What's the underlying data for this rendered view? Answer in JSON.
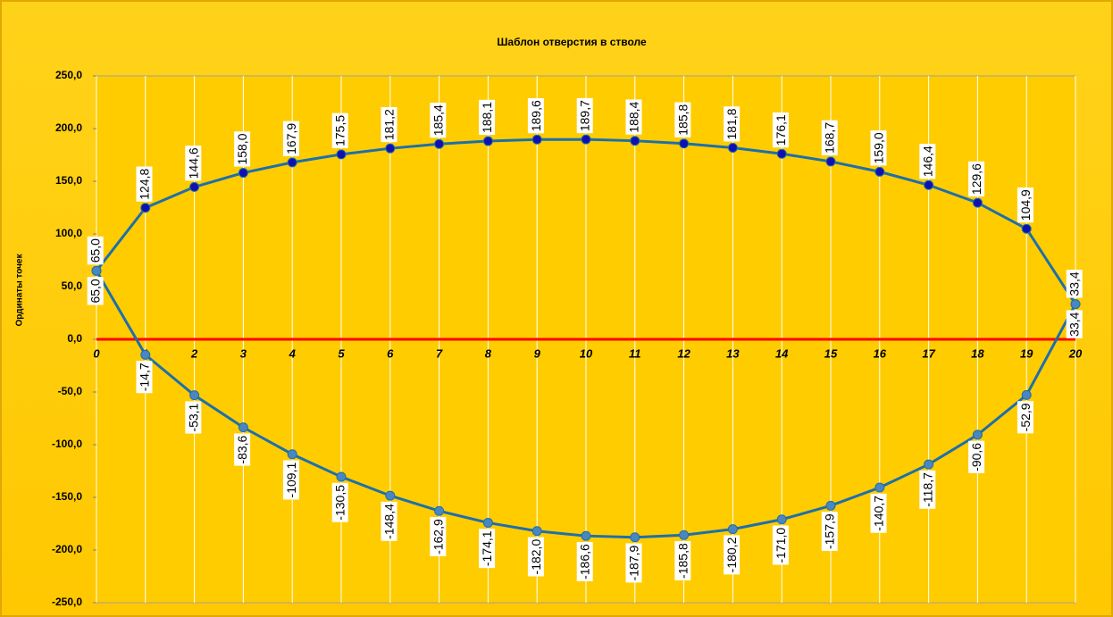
{
  "chart_data": {
    "type": "line",
    "title": "Шаблон отверстия в стволе",
    "y_label": "Ординаты точек",
    "x": [
      0,
      1,
      2,
      3,
      4,
      5,
      6,
      7,
      8,
      9,
      10,
      11,
      12,
      13,
      14,
      15,
      16,
      17,
      18,
      19,
      20
    ],
    "xlim": [
      0,
      20
    ],
    "xticks": [
      0,
      1,
      2,
      3,
      4,
      5,
      6,
      7,
      8,
      9,
      10,
      11,
      12,
      13,
      14,
      15,
      16,
      17,
      18,
      19,
      20
    ],
    "ylim": [
      -250,
      250
    ],
    "yticks": [
      {
        "value": -250,
        "label": "-250,0"
      },
      {
        "value": -200,
        "label": "-200,0"
      },
      {
        "value": -150,
        "label": "-150,0"
      },
      {
        "value": -100,
        "label": "-100,0"
      },
      {
        "value": -50,
        "label": "-50,0"
      },
      {
        "value": 0,
        "label": "0,0"
      },
      {
        "value": 50,
        "label": "50,0"
      },
      {
        "value": 100,
        "label": "100,0"
      },
      {
        "value": 150,
        "label": "150,0"
      },
      {
        "value": 200,
        "label": "200,0"
      },
      {
        "value": 250,
        "label": "250,0"
      }
    ],
    "grid": true,
    "series": [
      {
        "color": "#1f6fa8",
        "marker_color": "#1010b0",
        "values": [
          65.0,
          124.8,
          144.6,
          158.0,
          167.9,
          175.5,
          181.2,
          185.4,
          188.1,
          189.6,
          189.7,
          188.4,
          185.8,
          181.8,
          176.1,
          168.7,
          159.0,
          146.4,
          129.6,
          104.9,
          33.4
        ],
        "value_labels": [
          "65,0",
          "124,8",
          "144,6",
          "158,0",
          "167,9",
          "175,5",
          "181,2",
          "185,4",
          "188,1",
          "189,6",
          "189,7",
          "188,4",
          "185,8",
          "181,8",
          "176,1",
          "168,7",
          "159,0",
          "146,4",
          "129,6",
          "104,9",
          "33,4"
        ]
      },
      {
        "color": "#1f6fa8",
        "marker_color": "#4a86c0",
        "values": [
          65.0,
          -14.7,
          -53.1,
          -83.6,
          -109.1,
          -130.5,
          -148.4,
          -162.9,
          -174.1,
          -182.0,
          -186.6,
          -187.9,
          -185.8,
          -180.2,
          -171.0,
          -157.9,
          -140.7,
          -118.7,
          -90.6,
          -52.9,
          33.4
        ],
        "value_labels": [
          "65,0",
          "-14,7",
          "-53,1",
          "-83,6",
          "-109,1",
          "-130,5",
          "-148,4",
          "-162,9",
          "-174,1",
          "-182,0",
          "-186,6",
          "-187,9",
          "-185,8",
          "-180,2",
          "-171,0",
          "-157,9",
          "-140,7",
          "-118,7",
          "-90,6",
          "-52,9",
          "33,4"
        ]
      }
    ]
  }
}
